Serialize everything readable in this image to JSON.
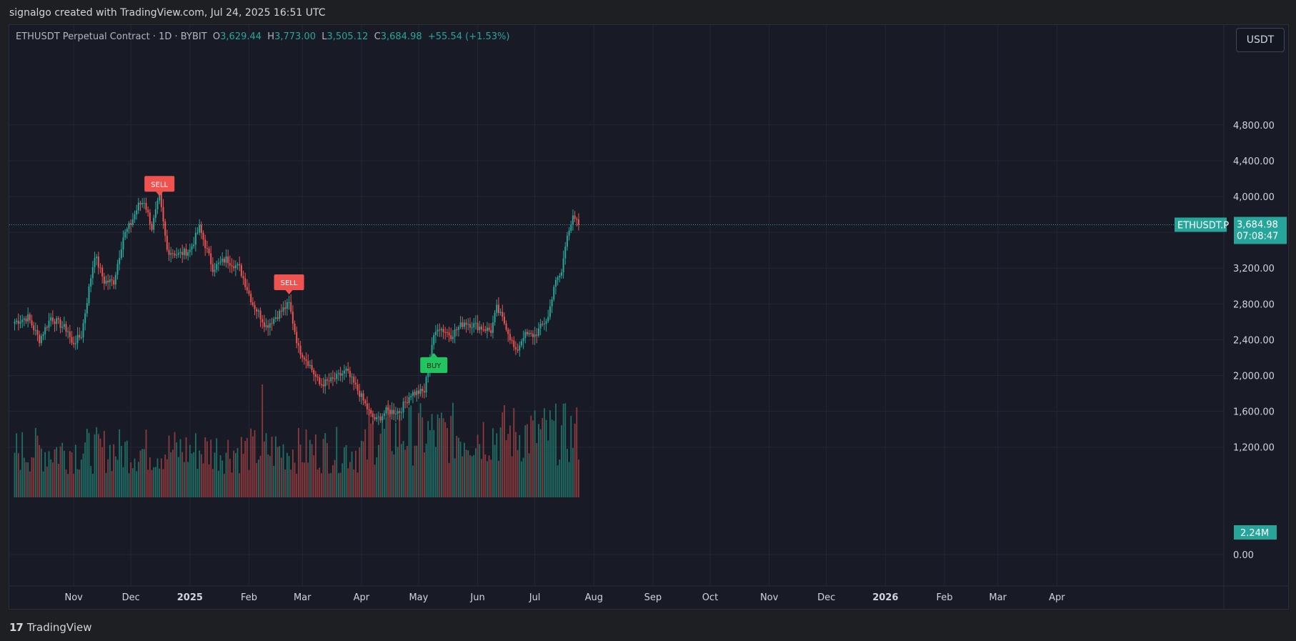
{
  "header": {
    "attribution": "signalgo created with TradingView.com, Jul 24, 2025 16:51 UTC"
  },
  "legend": {
    "symbol": "ETHUSDT Perpetual Contract · 1D · BYBIT",
    "open_label": "O",
    "open": "3,629.44",
    "high_label": "H",
    "high": "3,773.00",
    "low_label": "L",
    "low": "3,505.12",
    "close_label": "C",
    "close": "3,684.98",
    "change": "+55.54 (+1.53%)"
  },
  "currency_button": "USDT",
  "footer": {
    "logo_glyph": "17",
    "brand": "TradingView"
  },
  "colors": {
    "up": "#26a69a",
    "down": "#ef5350",
    "background": "#181b25",
    "sell": "#ef5350",
    "buy": "#22c55e",
    "price_line": "#26a69a"
  },
  "chart_data": {
    "type": "candlestick",
    "title": "ETHUSDT Perpetual Contract · 1D · BYBIT",
    "price_axis": {
      "min": 0,
      "max": 5000,
      "ticks": [
        "0.00",
        "1,200.00",
        "1,600.00",
        "2,000.00",
        "2,400.00",
        "2,800.00",
        "3,200.00",
        "4,000.00",
        "4,400.00",
        "4,800.00"
      ],
      "tick_values": [
        0,
        1200,
        1600,
        2000,
        2400,
        2800,
        3200,
        4000,
        4400,
        4800
      ]
    },
    "time_axis": {
      "labels": [
        "Nov",
        "Dec",
        "2025",
        "Feb",
        "Mar",
        "Apr",
        "May",
        "Jun",
        "Jul",
        "Aug",
        "Sep",
        "Oct",
        "Nov",
        "Dec",
        "2026",
        "Feb",
        "Mar",
        "Apr"
      ],
      "bold": [
        "2025",
        "2026"
      ]
    },
    "current_price": {
      "symbol_label": "ETHUSDT.P",
      "value": "3,684.98",
      "countdown": "07:08:47",
      "price": 3684.98
    },
    "volume_label": "2.24M",
    "signals": [
      {
        "type": "SELL",
        "date": "2024-12-16",
        "price": 3950
      },
      {
        "type": "SELL",
        "date": "2025-02-22",
        "price": 2850
      },
      {
        "type": "BUY",
        "date": "2025-05-09",
        "price": 2300
      }
    ],
    "price_path": [
      [
        "2024-10-01",
        2600
      ],
      [
        "2024-10-08",
        2650
      ],
      [
        "2024-10-14",
        2400
      ],
      [
        "2024-10-20",
        2650
      ],
      [
        "2024-10-29",
        2500
      ],
      [
        "2024-10-31",
        2350
      ],
      [
        "2024-11-05",
        2450
      ],
      [
        "2024-11-10",
        3100
      ],
      [
        "2024-11-12",
        3350
      ],
      [
        "2024-11-17",
        3050
      ],
      [
        "2024-11-22",
        3050
      ],
      [
        "2024-11-27",
        3550
      ],
      [
        "2024-12-01",
        3700
      ],
      [
        "2024-12-05",
        3900
      ],
      [
        "2024-12-08",
        3950
      ],
      [
        "2024-12-12",
        3650
      ],
      [
        "2024-12-16",
        4000
      ],
      [
        "2024-12-20",
        3400
      ],
      [
        "2024-12-26",
        3350
      ],
      [
        "2025-01-01",
        3400
      ],
      [
        "2025-01-06",
        3650
      ],
      [
        "2025-01-13",
        3200
      ],
      [
        "2025-01-20",
        3300
      ],
      [
        "2025-01-27",
        3200
      ],
      [
        "2025-02-03",
        2800
      ],
      [
        "2025-02-06",
        2700
      ],
      [
        "2025-02-10",
        2550
      ],
      [
        "2025-02-17",
        2700
      ],
      [
        "2025-02-22",
        2800
      ],
      [
        "2025-02-27",
        2300
      ],
      [
        "2025-03-04",
        2150
      ],
      [
        "2025-03-10",
        1900
      ],
      [
        "2025-03-17",
        1950
      ],
      [
        "2025-03-24",
        2050
      ],
      [
        "2025-03-31",
        1800
      ],
      [
        "2025-04-06",
        1550
      ],
      [
        "2025-04-09",
        1500
      ],
      [
        "2025-04-14",
        1600
      ],
      [
        "2025-04-21",
        1600
      ],
      [
        "2025-04-27",
        1800
      ],
      [
        "2025-05-04",
        1820
      ],
      [
        "2025-05-08",
        2350
      ],
      [
        "2025-05-11",
        2550
      ],
      [
        "2025-05-18",
        2450
      ],
      [
        "2025-05-25",
        2600
      ],
      [
        "2025-06-01",
        2550
      ],
      [
        "2025-06-08",
        2500
      ],
      [
        "2025-06-11",
        2750
      ],
      [
        "2025-06-16",
        2550
      ],
      [
        "2025-06-21",
        2250
      ],
      [
        "2025-06-25",
        2450
      ],
      [
        "2025-07-01",
        2450
      ],
      [
        "2025-07-08",
        2650
      ],
      [
        "2025-07-11",
        3000
      ],
      [
        "2025-07-15",
        3150
      ],
      [
        "2025-07-18",
        3600
      ],
      [
        "2025-07-21",
        3750
      ],
      [
        "2025-07-24",
        3685
      ]
    ]
  }
}
